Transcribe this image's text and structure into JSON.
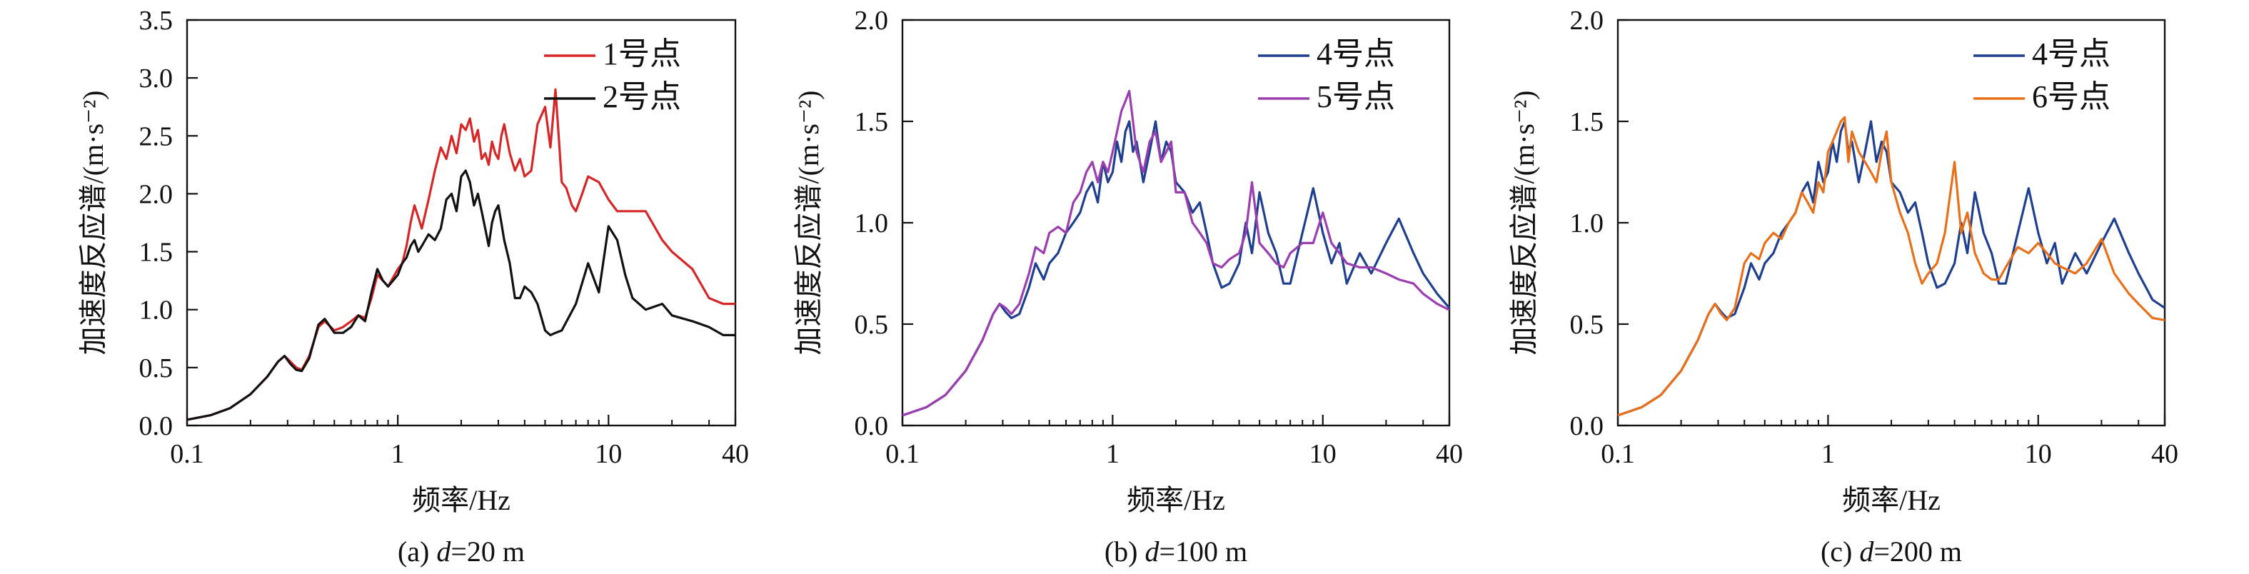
{
  "chart_data": [
    {
      "type": "line",
      "caption": "(a) d=20 m",
      "caption_prefix": "(a) ",
      "caption_var": "d",
      "caption_rest": "=20 m",
      "xlabel": "频率/Hz",
      "ylabel": "加速度反应谱/(m·s⁻²)",
      "xscale": "log",
      "xlim": [
        0.1,
        40
      ],
      "xticks": [
        "0.1",
        "1",
        "10",
        "40"
      ],
      "ylim": [
        0,
        3.5
      ],
      "yticks": [
        "0.0",
        "0.5",
        "1.0",
        "1.5",
        "2.0",
        "2.5",
        "3.0",
        "3.5"
      ],
      "grid": false,
      "legend_position": "top-right",
      "series": [
        {
          "name": "1号点",
          "color": "#d62728",
          "x": [
            0.1,
            0.13,
            0.16,
            0.2,
            0.24,
            0.27,
            0.29,
            0.31,
            0.33,
            0.35,
            0.38,
            0.42,
            0.45,
            0.5,
            0.55,
            0.6,
            0.65,
            0.7,
            0.75,
            0.8,
            0.85,
            0.9,
            1.0,
            1.05,
            1.1,
            1.15,
            1.2,
            1.25,
            1.3,
            1.4,
            1.5,
            1.6,
            1.7,
            1.8,
            1.9,
            2.0,
            2.1,
            2.2,
            2.3,
            2.4,
            2.5,
            2.6,
            2.7,
            2.8,
            2.9,
            3.0,
            3.1,
            3.2,
            3.4,
            3.6,
            3.8,
            4.0,
            4.3,
            4.6,
            5.0,
            5.3,
            5.6,
            5.8,
            6.0,
            6.3,
            6.7,
            7.0,
            7.5,
            8.0,
            9.0,
            10,
            11,
            13,
            15,
            18,
            20,
            25,
            30,
            35,
            40
          ],
          "y": [
            0.05,
            0.09,
            0.15,
            0.27,
            0.42,
            0.55,
            0.6,
            0.55,
            0.5,
            0.48,
            0.6,
            0.85,
            0.9,
            0.82,
            0.85,
            0.9,
            0.95,
            0.93,
            1.1,
            1.3,
            1.25,
            1.2,
            1.35,
            1.4,
            1.55,
            1.75,
            1.9,
            1.8,
            1.7,
            1.95,
            2.2,
            2.4,
            2.3,
            2.5,
            2.35,
            2.6,
            2.55,
            2.65,
            2.45,
            2.55,
            2.3,
            2.35,
            2.25,
            2.45,
            2.35,
            2.3,
            2.5,
            2.6,
            2.35,
            2.2,
            2.3,
            2.15,
            2.2,
            2.6,
            2.75,
            2.4,
            2.9,
            2.5,
            2.1,
            2.05,
            1.9,
            1.85,
            2.0,
            2.15,
            2.1,
            1.95,
            1.85,
            1.85,
            1.85,
            1.6,
            1.5,
            1.35,
            1.1,
            1.05,
            1.05
          ]
        },
        {
          "name": "2号点",
          "color": "#111111",
          "x": [
            0.1,
            0.13,
            0.16,
            0.2,
            0.24,
            0.27,
            0.29,
            0.31,
            0.33,
            0.35,
            0.38,
            0.42,
            0.45,
            0.5,
            0.55,
            0.6,
            0.65,
            0.7,
            0.75,
            0.8,
            0.85,
            0.9,
            1.0,
            1.05,
            1.1,
            1.15,
            1.2,
            1.25,
            1.3,
            1.4,
            1.5,
            1.6,
            1.7,
            1.8,
            1.9,
            2.0,
            2.1,
            2.2,
            2.3,
            2.4,
            2.5,
            2.6,
            2.7,
            2.8,
            2.9,
            3.0,
            3.1,
            3.2,
            3.4,
            3.6,
            3.8,
            4.0,
            4.3,
            4.6,
            5.0,
            5.3,
            5.6,
            6.0,
            7.0,
            8.0,
            9.0,
            10,
            11,
            12,
            13,
            15,
            18,
            20,
            25,
            30,
            35,
            40
          ],
          "y": [
            0.05,
            0.09,
            0.15,
            0.27,
            0.42,
            0.55,
            0.6,
            0.53,
            0.48,
            0.47,
            0.58,
            0.87,
            0.92,
            0.8,
            0.8,
            0.85,
            0.95,
            0.9,
            1.15,
            1.35,
            1.25,
            1.2,
            1.3,
            1.4,
            1.45,
            1.55,
            1.6,
            1.5,
            1.55,
            1.65,
            1.6,
            1.7,
            1.95,
            2.0,
            1.85,
            2.15,
            2.2,
            2.1,
            1.9,
            2.0,
            1.85,
            1.7,
            1.55,
            1.75,
            1.85,
            1.9,
            1.75,
            1.6,
            1.4,
            1.1,
            1.1,
            1.2,
            1.15,
            1.05,
            0.82,
            0.78,
            0.8,
            0.82,
            1.05,
            1.4,
            1.15,
            1.72,
            1.6,
            1.3,
            1.1,
            1.0,
            1.05,
            0.95,
            0.9,
            0.85,
            0.78,
            0.78
          ]
        }
      ]
    },
    {
      "type": "line",
      "caption": "(b) d=100 m",
      "caption_prefix": "(b) ",
      "caption_var": "d",
      "caption_rest": "=100 m",
      "xlabel": "频率/Hz",
      "ylabel": "加速度反应谱/(m·s⁻²)",
      "xscale": "log",
      "xlim": [
        0.1,
        40
      ],
      "xticks": [
        "0.1",
        "1",
        "10",
        "40"
      ],
      "ylim": [
        0,
        2.0
      ],
      "yticks": [
        "0.0",
        "0.5",
        "1.0",
        "1.5",
        "2.0"
      ],
      "grid": false,
      "legend_position": "top-right",
      "series": [
        {
          "name": "4号点",
          "color": "#1f3f8f",
          "x": [
            0.1,
            0.13,
            0.16,
            0.2,
            0.24,
            0.27,
            0.29,
            0.31,
            0.33,
            0.36,
            0.4,
            0.43,
            0.47,
            0.5,
            0.55,
            0.6,
            0.65,
            0.7,
            0.75,
            0.8,
            0.85,
            0.9,
            0.95,
            1.0,
            1.05,
            1.1,
            1.15,
            1.2,
            1.25,
            1.3,
            1.4,
            1.5,
            1.6,
            1.7,
            1.8,
            1.9,
            2.0,
            2.2,
            2.4,
            2.6,
            2.8,
            3.0,
            3.3,
            3.6,
            4.0,
            4.3,
            4.6,
            5.0,
            5.5,
            6.0,
            6.5,
            7.0,
            8.0,
            9.0,
            10,
            11,
            12,
            13,
            15,
            17,
            20,
            23,
            27,
            30,
            35,
            40
          ],
          "y": [
            0.05,
            0.09,
            0.15,
            0.27,
            0.42,
            0.55,
            0.6,
            0.56,
            0.53,
            0.55,
            0.68,
            0.8,
            0.72,
            0.8,
            0.85,
            0.95,
            1.0,
            1.05,
            1.15,
            1.2,
            1.1,
            1.3,
            1.2,
            1.25,
            1.4,
            1.3,
            1.45,
            1.5,
            1.35,
            1.4,
            1.2,
            1.35,
            1.5,
            1.3,
            1.4,
            1.35,
            1.2,
            1.15,
            1.05,
            1.1,
            0.95,
            0.8,
            0.68,
            0.7,
            0.8,
            1.0,
            0.85,
            1.15,
            0.95,
            0.85,
            0.7,
            0.7,
            0.95,
            1.17,
            0.95,
            0.8,
            0.9,
            0.7,
            0.85,
            0.75,
            0.9,
            1.02,
            0.85,
            0.75,
            0.65,
            0.58
          ]
        },
        {
          "name": "5号点",
          "color": "#9b3fb0",
          "x": [
            0.1,
            0.13,
            0.16,
            0.2,
            0.24,
            0.27,
            0.29,
            0.31,
            0.33,
            0.36,
            0.4,
            0.43,
            0.47,
            0.5,
            0.55,
            0.6,
            0.65,
            0.7,
            0.75,
            0.8,
            0.85,
            0.9,
            0.95,
            1.0,
            1.05,
            1.1,
            1.15,
            1.2,
            1.25,
            1.3,
            1.4,
            1.5,
            1.6,
            1.7,
            1.8,
            1.9,
            2.0,
            2.2,
            2.4,
            2.6,
            2.8,
            3.0,
            3.3,
            3.6,
            4.0,
            4.3,
            4.6,
            5.0,
            5.5,
            6.0,
            6.5,
            7.0,
            8.0,
            9.0,
            10,
            11,
            12,
            13,
            15,
            17,
            20,
            23,
            27,
            30,
            35,
            40
          ],
          "y": [
            0.05,
            0.09,
            0.15,
            0.27,
            0.42,
            0.55,
            0.6,
            0.58,
            0.55,
            0.6,
            0.75,
            0.88,
            0.85,
            0.95,
            0.98,
            0.95,
            1.1,
            1.15,
            1.25,
            1.3,
            1.2,
            1.3,
            1.25,
            1.35,
            1.45,
            1.55,
            1.6,
            1.65,
            1.5,
            1.35,
            1.25,
            1.4,
            1.45,
            1.3,
            1.35,
            1.4,
            1.15,
            1.15,
            1.0,
            0.95,
            0.9,
            0.8,
            0.78,
            0.82,
            0.85,
            0.95,
            1.2,
            0.9,
            0.85,
            0.8,
            0.78,
            0.85,
            0.9,
            0.9,
            1.05,
            0.9,
            0.85,
            0.8,
            0.78,
            0.78,
            0.75,
            0.72,
            0.7,
            0.65,
            0.6,
            0.57
          ]
        }
      ]
    },
    {
      "type": "line",
      "caption": "(c) d=200 m",
      "caption_prefix": "(c) ",
      "caption_var": "d",
      "caption_rest": "=200 m",
      "xlabel": "频率/Hz",
      "ylabel": "加速度反应谱/(m·s⁻²)",
      "xscale": "log",
      "xlim": [
        0.1,
        40
      ],
      "xticks": [
        "0.1",
        "1",
        "10",
        "40"
      ],
      "ylim": [
        0,
        2.0
      ],
      "yticks": [
        "0.0",
        "0.5",
        "1.0",
        "1.5",
        "2.0"
      ],
      "grid": false,
      "legend_position": "top-right",
      "series": [
        {
          "name": "4号点",
          "color": "#1f3f8f",
          "x": [
            0.1,
            0.13,
            0.16,
            0.2,
            0.24,
            0.27,
            0.29,
            0.31,
            0.33,
            0.36,
            0.4,
            0.43,
            0.47,
            0.5,
            0.55,
            0.6,
            0.65,
            0.7,
            0.75,
            0.8,
            0.85,
            0.9,
            0.95,
            1.0,
            1.05,
            1.1,
            1.15,
            1.2,
            1.25,
            1.3,
            1.4,
            1.5,
            1.6,
            1.7,
            1.8,
            1.9,
            2.0,
            2.2,
            2.4,
            2.6,
            2.8,
            3.0,
            3.3,
            3.6,
            4.0,
            4.3,
            4.6,
            5.0,
            5.5,
            6.0,
            6.5,
            7.0,
            8.0,
            9.0,
            10,
            11,
            12,
            13,
            15,
            17,
            20,
            23,
            27,
            30,
            35,
            40
          ],
          "y": [
            0.05,
            0.09,
            0.15,
            0.27,
            0.42,
            0.55,
            0.6,
            0.56,
            0.53,
            0.55,
            0.68,
            0.8,
            0.72,
            0.8,
            0.85,
            0.95,
            1.0,
            1.05,
            1.15,
            1.2,
            1.1,
            1.3,
            1.2,
            1.25,
            1.4,
            1.3,
            1.45,
            1.5,
            1.35,
            1.4,
            1.2,
            1.35,
            1.5,
            1.3,
            1.4,
            1.35,
            1.2,
            1.15,
            1.05,
            1.1,
            0.95,
            0.8,
            0.68,
            0.7,
            0.8,
            1.0,
            0.85,
            1.15,
            0.95,
            0.85,
            0.7,
            0.7,
            0.95,
            1.17,
            0.95,
            0.8,
            0.9,
            0.7,
            0.85,
            0.75,
            0.9,
            1.02,
            0.85,
            0.75,
            0.62,
            0.58
          ]
        },
        {
          "name": "6号点",
          "color": "#e8701a",
          "x": [
            0.1,
            0.13,
            0.16,
            0.2,
            0.24,
            0.27,
            0.29,
            0.31,
            0.33,
            0.36,
            0.4,
            0.43,
            0.47,
            0.5,
            0.55,
            0.6,
            0.65,
            0.7,
            0.75,
            0.8,
            0.85,
            0.9,
            0.95,
            1.0,
            1.05,
            1.1,
            1.15,
            1.2,
            1.25,
            1.3,
            1.4,
            1.5,
            1.6,
            1.7,
            1.8,
            1.9,
            2.0,
            2.2,
            2.4,
            2.6,
            2.8,
            3.0,
            3.3,
            3.6,
            4.0,
            4.3,
            4.6,
            5.0,
            5.5,
            6.0,
            6.5,
            7.0,
            8.0,
            9.0,
            10,
            11,
            12,
            13,
            15,
            17,
            20,
            23,
            27,
            30,
            35,
            40
          ],
          "y": [
            0.05,
            0.09,
            0.15,
            0.27,
            0.42,
            0.55,
            0.6,
            0.55,
            0.52,
            0.58,
            0.8,
            0.85,
            0.82,
            0.9,
            0.95,
            0.92,
            1.0,
            1.05,
            1.15,
            1.1,
            1.05,
            1.2,
            1.15,
            1.35,
            1.4,
            1.45,
            1.5,
            1.52,
            1.3,
            1.45,
            1.35,
            1.3,
            1.25,
            1.2,
            1.35,
            1.45,
            1.2,
            1.05,
            0.95,
            0.8,
            0.7,
            0.75,
            0.8,
            0.95,
            1.3,
            0.95,
            1.05,
            0.85,
            0.75,
            0.72,
            0.72,
            0.78,
            0.88,
            0.85,
            0.9,
            0.85,
            0.8,
            0.78,
            0.75,
            0.8,
            0.92,
            0.75,
            0.65,
            0.6,
            0.53,
            0.52
          ]
        }
      ]
    }
  ]
}
